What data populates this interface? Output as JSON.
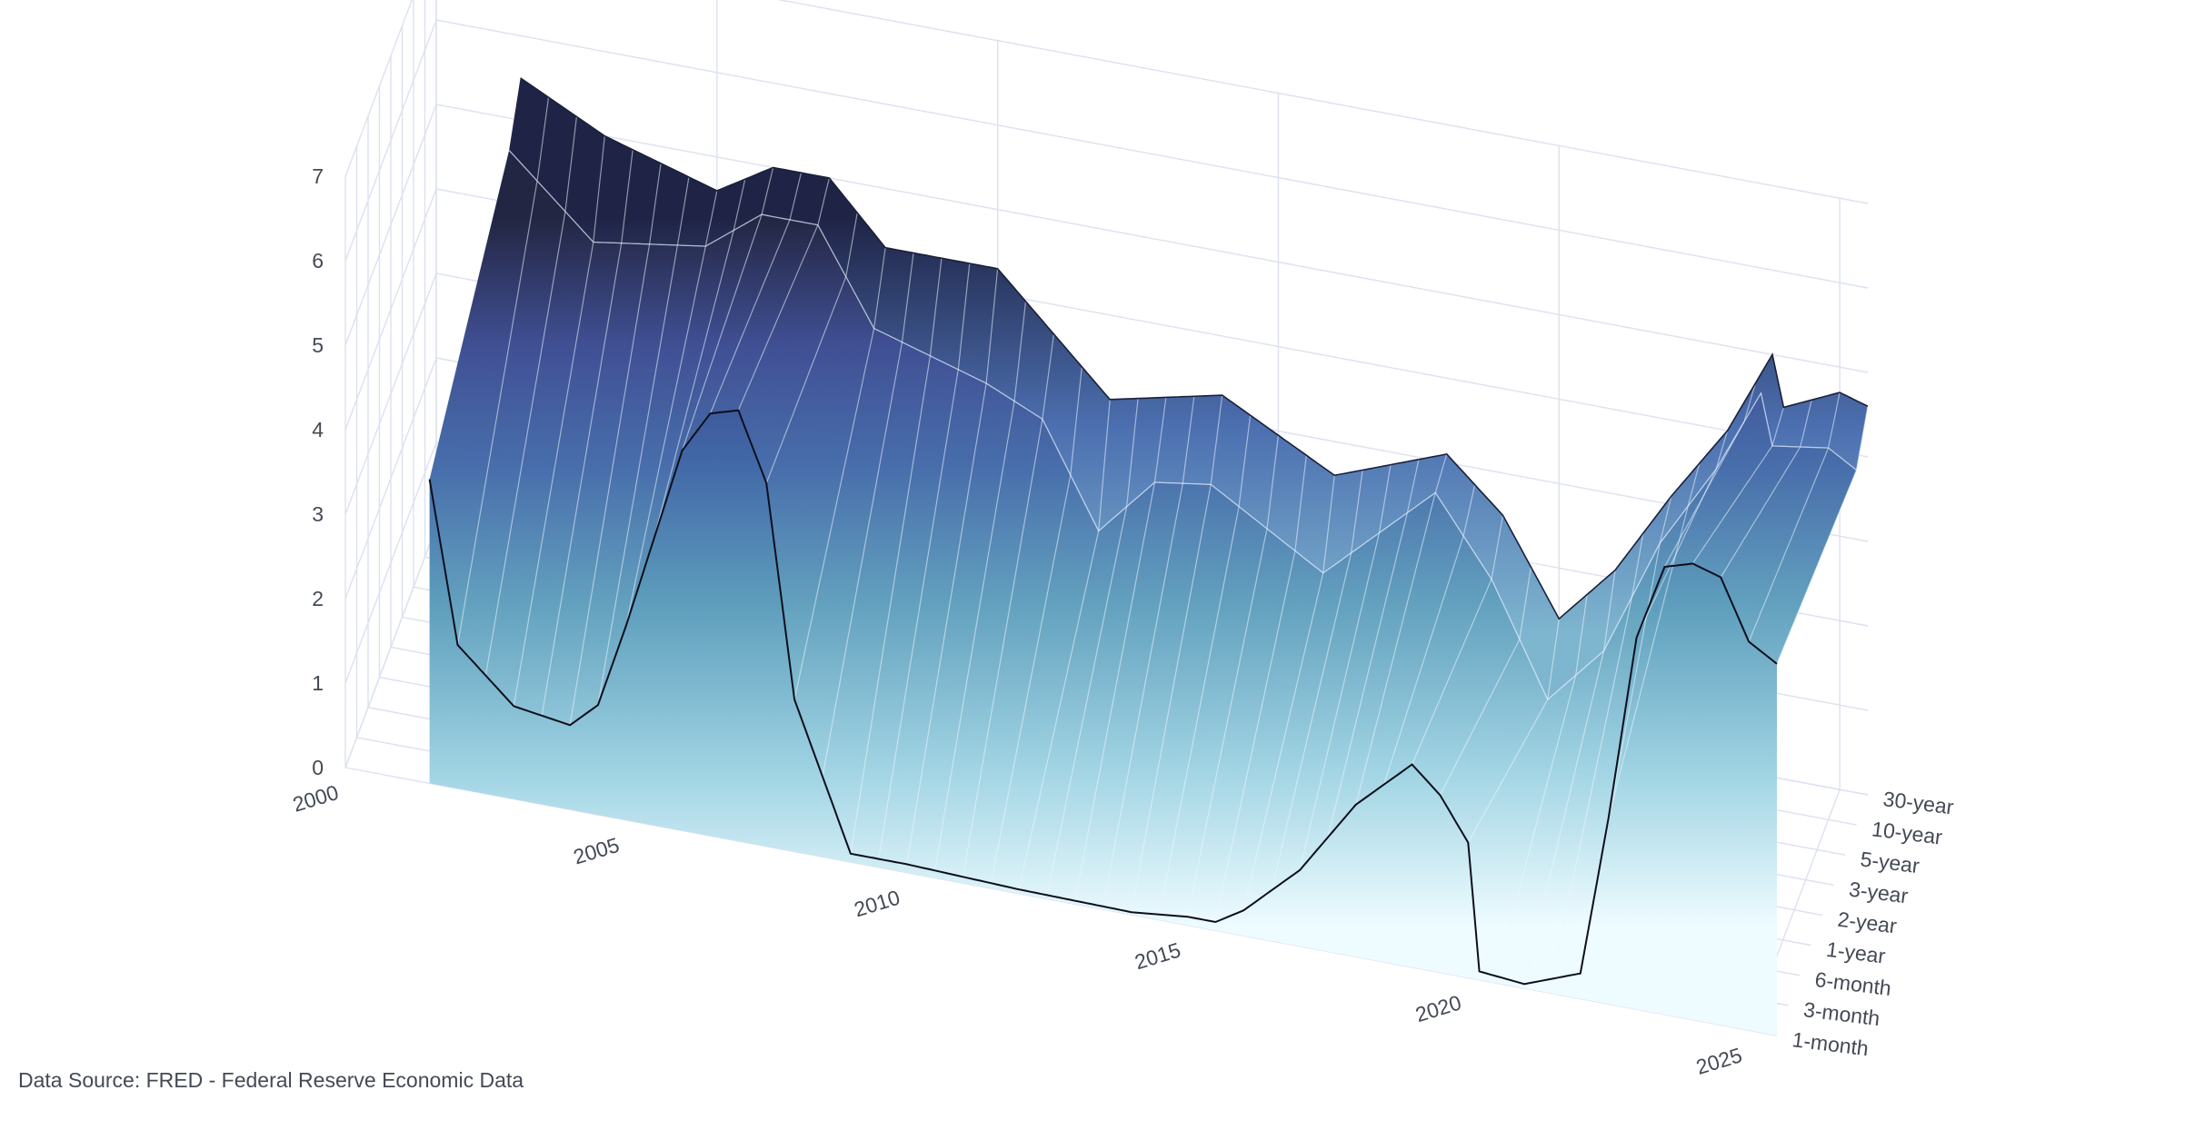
{
  "chart_data": {
    "type": "surface",
    "title": "",
    "source_note": "Data Source: FRED - Federal Reserve Economic Data",
    "x_axis": {
      "label": "",
      "ticks": [
        "2000",
        "2005",
        "2010",
        "2015",
        "2020",
        "2025"
      ],
      "range": [
        2000,
        2025.5
      ]
    },
    "y_axis": {
      "label": "",
      "ticks": [
        "1-month",
        "3-month",
        "6-month",
        "1-year",
        "2-year",
        "3-year",
        "5-year",
        "10-year",
        "30-year"
      ]
    },
    "z_axis": {
      "label": "",
      "ticks": [
        "0",
        "1",
        "2",
        "3",
        "4",
        "5",
        "6",
        "7"
      ],
      "range": [
        0,
        7
      ]
    },
    "colorscale": [
      "#eefcff",
      "#9fd3e3",
      "#5f9fbd",
      "#4269a8",
      "#3a4a90",
      "#1c1f3d"
    ],
    "grid": true,
    "series": [
      {
        "maturity": "1-month",
        "years": [
          2001.5,
          2002,
          2003,
          2004,
          2004.5,
          2005,
          2006,
          2006.5,
          2007,
          2007.5,
          2008,
          2009,
          2010,
          2012,
          2014,
          2015,
          2015.5,
          2016,
          2017,
          2018,
          2019,
          2019.5,
          2020,
          2020.2,
          2021,
          2022,
          2022.5,
          2023,
          2023.5,
          2024,
          2024.5,
          2025,
          2025.5
        ],
        "values": [
          3.6,
          1.7,
          1.1,
          1.0,
          1.3,
          2.3,
          4.5,
          5.0,
          5.1,
          4.3,
          1.8,
          0.1,
          0.1,
          0.05,
          0.03,
          0.1,
          0.1,
          0.3,
          0.9,
          1.8,
          2.4,
          2.1,
          1.6,
          0.1,
          0.05,
          0.3,
          2.2,
          4.4,
          5.3,
          5.4,
          5.3,
          4.6,
          4.4
        ]
      },
      {
        "maturity": "10-year",
        "years": [
          2001.5,
          2003,
          2005,
          2006,
          2007,
          2008,
          2010,
          2011,
          2012,
          2013,
          2014,
          2016,
          2018,
          2019,
          2020,
          2021,
          2022,
          2023,
          2023.8,
          2024,
          2025,
          2025.5
        ],
        "values": [
          5.0,
          4.1,
          4.3,
          4.8,
          4.8,
          3.7,
          3.3,
          3.0,
          1.8,
          2.5,
          2.6,
          1.8,
          3.0,
          2.1,
          0.8,
          1.5,
          2.9,
          3.9,
          4.9,
          4.3,
          4.4,
          4.2
        ]
      },
      {
        "maturity": "30-year",
        "years": [
          2001.5,
          2003,
          2005,
          2006,
          2007,
          2008,
          2010,
          2012,
          2014,
          2016,
          2018,
          2019,
          2020,
          2021,
          2022,
          2023,
          2023.8,
          2024,
          2025,
          2025.5
        ],
        "values": [
          5.5,
          5.0,
          4.6,
          5.0,
          5.0,
          4.3,
          4.3,
          3.0,
          3.3,
          2.6,
          3.1,
          2.5,
          1.4,
          2.1,
          3.1,
          4.0,
          5.0,
          4.4,
          4.7,
          4.6
        ]
      }
    ]
  }
}
